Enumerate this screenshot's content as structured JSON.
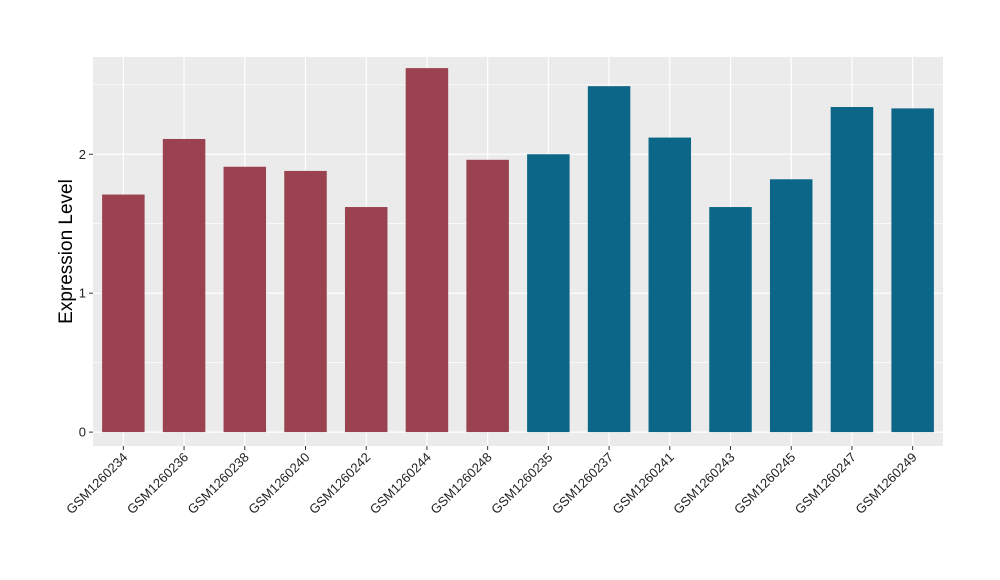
{
  "chart_data": {
    "type": "bar",
    "title": "",
    "xlabel": "",
    "ylabel": "Expression Level",
    "ylim": [
      -0.1,
      2.7
    ],
    "yticks": [
      0,
      1,
      2
    ],
    "ytick_labels": [
      "0",
      "1",
      "2"
    ],
    "grid": true,
    "legend": "none",
    "categories": [
      "GSM1260234",
      "GSM1260236",
      "GSM1260238",
      "GSM1260240",
      "GSM1260242",
      "GSM1260244",
      "GSM1260248",
      "GSM1260235",
      "GSM1260237",
      "GSM1260241",
      "GSM1260243",
      "GSM1260245",
      "GSM1260247",
      "GSM1260249"
    ],
    "values": [
      1.71,
      2.11,
      1.91,
      1.88,
      1.62,
      2.62,
      1.96,
      2.0,
      2.49,
      2.12,
      1.62,
      1.82,
      2.34,
      2.33
    ],
    "groups": [
      0,
      0,
      0,
      0,
      0,
      0,
      0,
      1,
      1,
      1,
      1,
      1,
      1,
      1
    ],
    "colors": {
      "group_0": "#9a4250",
      "group_1": "#0c6687",
      "panel_background": "#ebebeb",
      "grid": "#ffffff"
    }
  }
}
